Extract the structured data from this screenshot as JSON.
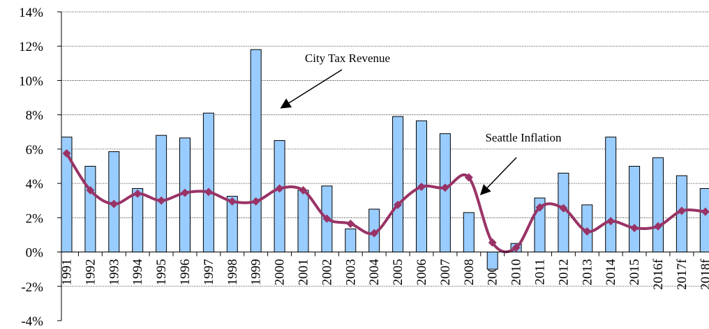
{
  "chart_data": {
    "type": "combo",
    "categories": [
      "1991",
      "1992",
      "1993",
      "1994",
      "1995",
      "1996",
      "1997",
      "1998",
      "1999",
      "2000",
      "2001",
      "2002",
      "2003",
      "2004",
      "2005",
      "2006",
      "2007",
      "2008",
      "2009",
      "2010",
      "2011",
      "2012",
      "2013",
      "2014",
      "2015",
      "2016f",
      "2017f",
      "2018f"
    ],
    "series": [
      {
        "type": "bar",
        "color": "#99ccff",
        "values": [
          6.7,
          5.0,
          5.85,
          3.7,
          6.8,
          6.65,
          8.1,
          3.25,
          11.8,
          6.5,
          3.6,
          3.85,
          1.35,
          2.5,
          7.9,
          7.65,
          6.9,
          2.3,
          -1.0,
          0.5,
          3.15,
          4.6,
          2.75,
          6.7,
          5.0,
          5.5,
          4.45,
          3.7
        ]
      },
      {
        "type": "line",
        "color": "#993366",
        "values": [
          5.75,
          3.6,
          2.8,
          3.4,
          3.0,
          3.45,
          3.5,
          2.95,
          2.95,
          3.7,
          3.6,
          1.95,
          1.65,
          1.1,
          2.75,
          3.8,
          3.75,
          4.35,
          0.55,
          0.25,
          2.6,
          2.55,
          1.2,
          1.8,
          1.4,
          1.5,
          2.4,
          2.35
        ]
      }
    ],
    "annotations": [
      "City Tax Revenue",
      "Seattle Inflation"
    ],
    "ylim": [
      -4,
      14
    ],
    "yticks": [
      {
        "value": -4,
        "label": "-4%"
      },
      {
        "value": -2,
        "label": "-2%"
      },
      {
        "value": 0,
        "label": "0%"
      },
      {
        "value": 2,
        "label": "2%"
      },
      {
        "value": 4,
        "label": "4%"
      },
      {
        "value": 6,
        "label": "6%"
      },
      {
        "value": 8,
        "label": "8%"
      },
      {
        "value": 10,
        "label": "10%"
      },
      {
        "value": 12,
        "label": "12%"
      },
      {
        "value": 14,
        "label": "14%"
      }
    ],
    "grid": true
  }
}
